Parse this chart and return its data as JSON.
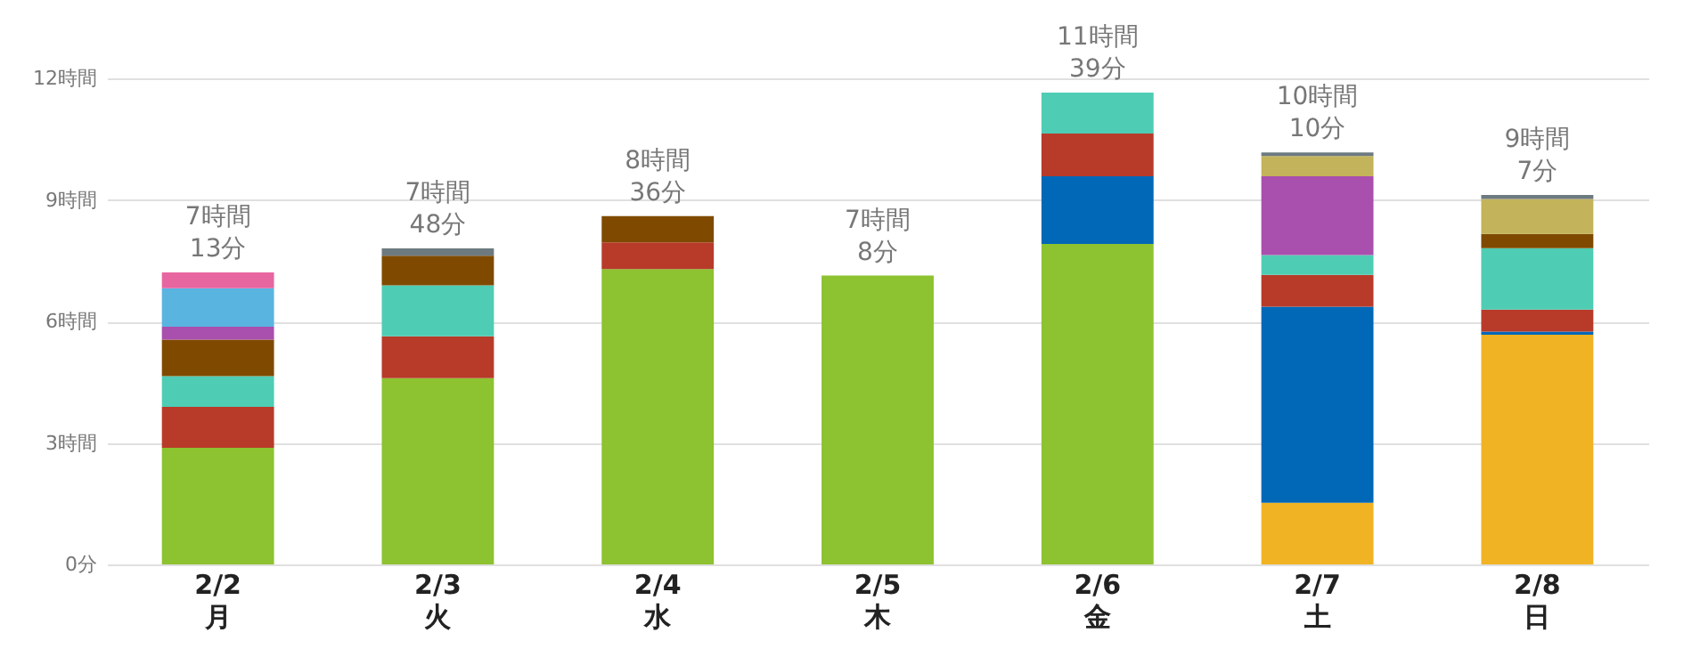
{
  "chart_data": {
    "type": "bar",
    "stacked": true,
    "categories": [
      "2/2\n月",
      "2/3\n火",
      "2/4\n水",
      "2/5\n木",
      "2/6\n金",
      "2/7\n土",
      "2/8\n日"
    ],
    "series": [
      {
        "color": "#8dc230",
        "values": [
          2.88,
          4.6,
          7.29,
          7.13,
          7.91,
          null,
          null
        ]
      },
      {
        "color": "#f0b323",
        "values": [
          null,
          null,
          null,
          null,
          null,
          1.52,
          5.67
        ]
      },
      {
        "color": "#0068b7",
        "values": [
          null,
          null,
          null,
          null,
          1.67,
          4.84,
          0.08
        ]
      },
      {
        "color": "#b83b2a",
        "values": [
          1.01,
          1.03,
          0.66,
          null,
          1.06,
          0.79,
          0.54
        ]
      },
      {
        "color": "#4ecdb4",
        "values": [
          0.76,
          1.26,
          null,
          null,
          1.01,
          0.49,
          1.52
        ]
      },
      {
        "color": "#7f4a00",
        "values": [
          0.9,
          0.73,
          0.65,
          null,
          null,
          null,
          0.35
        ]
      },
      {
        "color": "#a94fad",
        "values": [
          0.32,
          null,
          null,
          null,
          null,
          1.94,
          null
        ]
      },
      {
        "color": "#5ab4e0",
        "values": [
          0.95,
          null,
          null,
          null,
          null,
          null,
          null
        ]
      },
      {
        "color": "#e766a0",
        "values": [
          0.39,
          null,
          null,
          null,
          null,
          null,
          null
        ]
      },
      {
        "color": "#c3b35a",
        "values": [
          null,
          null,
          null,
          null,
          null,
          0.5,
          0.86
        ]
      },
      {
        "color": "#6d7a80",
        "values": [
          null,
          0.18,
          null,
          null,
          null,
          0.09,
          0.1
        ]
      }
    ],
    "totals": [
      "7時間\n13分",
      "7時間\n48分",
      "8時間\n36分",
      "7時間\n8分",
      "11時間\n39分",
      "10時間\n10分",
      "9時間\n7分"
    ],
    "ylim": [
      0,
      12
    ],
    "yticks": [
      {
        "value": 0,
        "label": "0分"
      },
      {
        "value": 3,
        "label": "3時間"
      },
      {
        "value": 6,
        "label": "6時間"
      },
      {
        "value": 9,
        "label": "9時間"
      },
      {
        "value": 12,
        "label": "12時間"
      }
    ],
    "grid": "y",
    "legend": false
  }
}
